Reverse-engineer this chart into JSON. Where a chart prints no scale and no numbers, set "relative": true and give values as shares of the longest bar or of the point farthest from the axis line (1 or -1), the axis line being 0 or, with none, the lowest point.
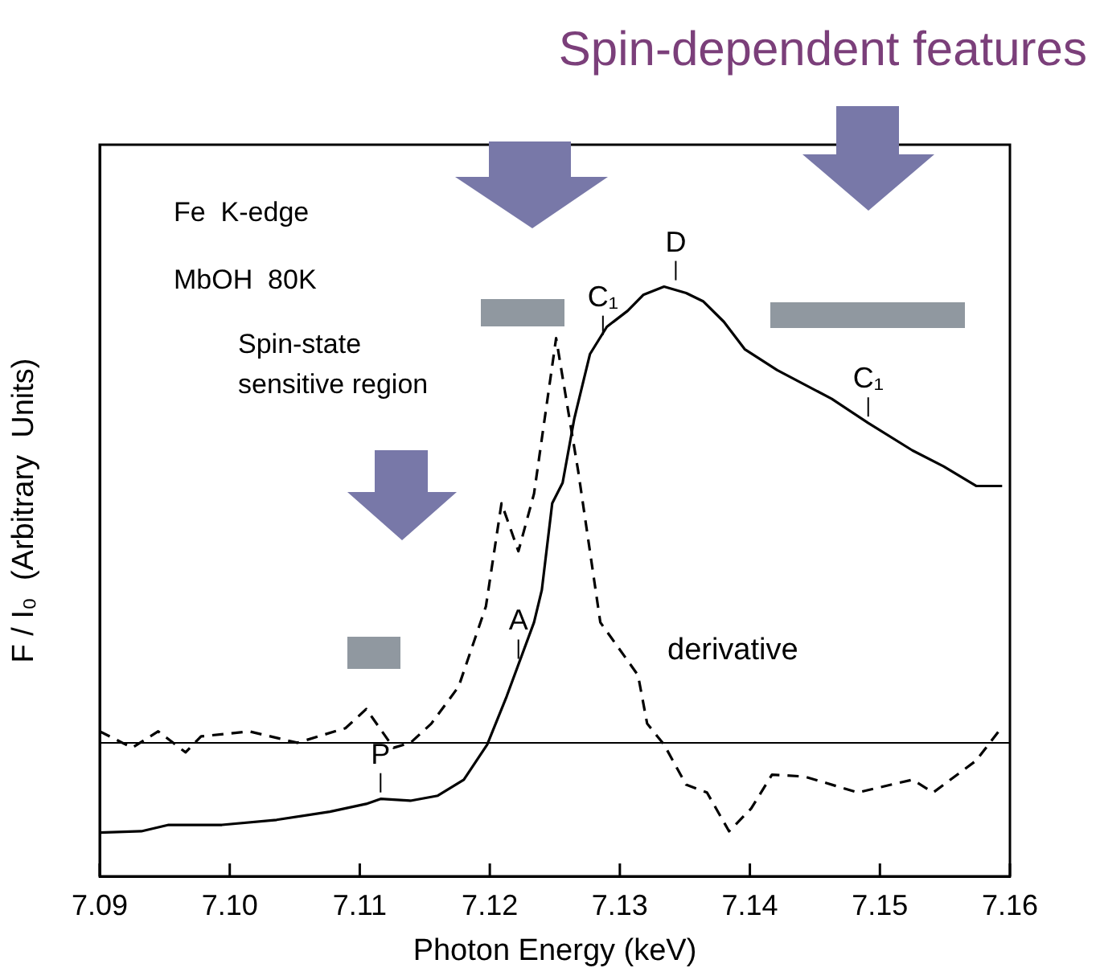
{
  "chart_data": {
    "type": "line",
    "title": "Spin-dependent features",
    "xlabel": "Photon Energy (keV)",
    "ylabel": "F / I₀  (Arbitrary  Units)",
    "relative": true,
    "tick_labels": "x",
    "grid": false,
    "legend": false,
    "marker": "none",
    "xlim": [
      7.09,
      7.16
    ],
    "xticks": [
      7.09,
      {
        "value": 7.1,
        "label": "7.10"
      },
      7.11,
      7.12,
      7.13,
      7.14,
      7.15,
      7.16
    ],
    "ref_lines": [
      {
        "axis": "y",
        "value": 0,
        "color": "#000000"
      }
    ],
    "annotations": [
      "Fe  K-edge",
      "MbOH  80K",
      "Spin-state sensitive region",
      {
        "text": "P",
        "x": 7.1116,
        "y": -0.123
      },
      {
        "text": "A",
        "x": 7.1222,
        "y": 0.17
      },
      {
        "text": "C₁",
        "x": 7.1287,
        "y": 0.88
      },
      {
        "text": "D",
        "x": 7.1343,
        "y": 1.0
      },
      {
        "text": "C₁",
        "x": 7.1491,
        "y": 0.701
      }
    ],
    "series": [
      {
        "color": "#000000",
        "line_style": "solid",
        "x": [
          7.09,
          7.0932,
          7.0953,
          7.0994,
          7.1036,
          7.1077,
          7.1105,
          7.1116,
          7.1139,
          7.116,
          7.118,
          7.1198,
          7.1213,
          7.1234,
          7.124,
          7.1248,
          7.1256,
          7.1265,
          7.1277,
          7.129,
          7.1306,
          7.1318,
          7.1334,
          7.1351,
          7.1364,
          7.138,
          7.1396,
          7.1421,
          7.1463,
          7.1491,
          7.1525,
          7.1549,
          7.1574,
          7.1594
        ],
        "values": [
          -0.197,
          -0.194,
          -0.18,
          -0.18,
          -0.169,
          -0.151,
          -0.134,
          -0.123,
          -0.127,
          -0.116,
          -0.081,
          -0.004,
          0.102,
          0.264,
          0.335,
          0.525,
          0.57,
          0.711,
          0.852,
          0.912,
          0.947,
          0.982,
          1.0,
          0.986,
          0.968,
          0.923,
          0.863,
          0.817,
          0.754,
          0.701,
          0.641,
          0.606,
          0.563,
          0.563
        ]
      },
      {
        "name": "derivative",
        "color": "#000000",
        "line_style": "dashed",
        "x": [
          7.09,
          7.0925,
          7.0945,
          7.0966,
          7.0978,
          7.1015,
          7.1052,
          7.1089,
          7.1105,
          7.1126,
          7.1139,
          7.1155,
          7.1176,
          7.1197,
          7.1209,
          7.1222,
          7.1234,
          7.1251,
          7.1268,
          7.1285,
          7.1314,
          7.1321,
          7.1334,
          7.1351,
          7.1367,
          7.1384,
          7.1401,
          7.1417,
          7.1442,
          7.1483,
          7.1525,
          7.1541,
          7.1574,
          7.1594
        ],
        "values": [
          0.025,
          -0.011,
          0.025,
          -0.021,
          0.014,
          0.025,
          0.0,
          0.032,
          0.074,
          -0.011,
          0.0,
          0.042,
          0.123,
          0.299,
          0.525,
          0.42,
          0.546,
          0.887,
          0.595,
          0.264,
          0.148,
          0.042,
          -0.004,
          -0.092,
          -0.109,
          -0.194,
          -0.144,
          -0.07,
          -0.074,
          -0.109,
          -0.081,
          -0.109,
          -0.039,
          0.035
        ]
      }
    ]
  }
}
